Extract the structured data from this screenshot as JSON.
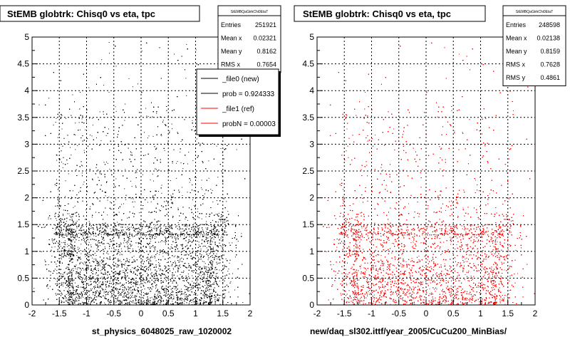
{
  "colors": {
    "ref": "#ff0000",
    "new": "#000000",
    "frame": "#000000",
    "background": "#ffffff"
  },
  "chart_data": [
    {
      "type": "scatter",
      "title": "StEMB globtrk: Chisq0 vs eta, tpc",
      "xlabel": "st_physics_6048025_raw_1020002",
      "ylabel": "",
      "xlim": [
        -2,
        2
      ],
      "ylim": [
        0,
        5
      ],
      "xticks": [
        "-2",
        "-1.5",
        "-1",
        "-0.5",
        "0",
        "0.5",
        "1",
        "1.5",
        "2"
      ],
      "yticks": [
        "0",
        "0.5",
        "1",
        "1.5",
        "2",
        "2.5",
        "3",
        "3.5",
        "4",
        "4.5",
        "5"
      ],
      "grid": true,
      "point_color": "#000000",
      "stats": {
        "name": "StEMBQaGtrkChi0EtaT",
        "rows": [
          {
            "label": "Entries",
            "value": "251921"
          },
          {
            "label": "Mean x",
            "value": "0.02321"
          },
          {
            "label": "Mean y",
            "value": "0.8162"
          },
          {
            "label": "RMS x",
            "value": "0.7654"
          }
        ]
      },
      "legend": {
        "position": "top-right",
        "entries": [
          {
            "label": "_file0 (new)",
            "color": "#000000"
          },
          {
            "label": "prob = 0.924333",
            "color": "#000000"
          },
          {
            "label": "_file1 (ref)",
            "color": "#ff0000"
          },
          {
            "label": "probN = 0.00003",
            "color": "#ff0000"
          }
        ]
      },
      "distribution": {
        "core_x": [
          -1.35,
          1.3
        ],
        "core_y": [
          0,
          1.5
        ],
        "mean_x": 0.02321,
        "mean_y": 0.8162,
        "rms_x": 0.7654
      }
    },
    {
      "type": "scatter",
      "title": "StEMB globtrk: Chisq0 vs eta, tpc",
      "xlabel": "new/daq_sl302.ittf/year_2005/CuCu200_MinBias/",
      "ylabel": "",
      "xlim": [
        -2,
        2
      ],
      "ylim": [
        0,
        5
      ],
      "xticks": [
        "-2",
        "-1.5",
        "-1",
        "-0.5",
        "0",
        "0.5",
        "1",
        "1.5",
        "2"
      ],
      "yticks": [
        "0",
        "0.5",
        "1",
        "1.5",
        "2",
        "2.5",
        "3",
        "3.5",
        "4",
        "4.5",
        "5"
      ],
      "grid": true,
      "point_color": "#ff0000",
      "stats": {
        "name": "StEMBQaGtrkChi0EtaT",
        "rows": [
          {
            "label": "Entries",
            "value": "248598"
          },
          {
            "label": "Mean x",
            "value": "0.02138"
          },
          {
            "label": "Mean y",
            "value": "0.8159"
          },
          {
            "label": "RMS x",
            "value": "0.7628"
          },
          {
            "label": "RMS y",
            "value": "0.4861"
          }
        ]
      },
      "distribution": {
        "core_x": [
          -1.35,
          1.3
        ],
        "core_y": [
          0,
          1.5
        ],
        "mean_x": 0.02138,
        "mean_y": 0.8159,
        "rms_x": 0.7628,
        "rms_y": 0.4861
      }
    }
  ]
}
